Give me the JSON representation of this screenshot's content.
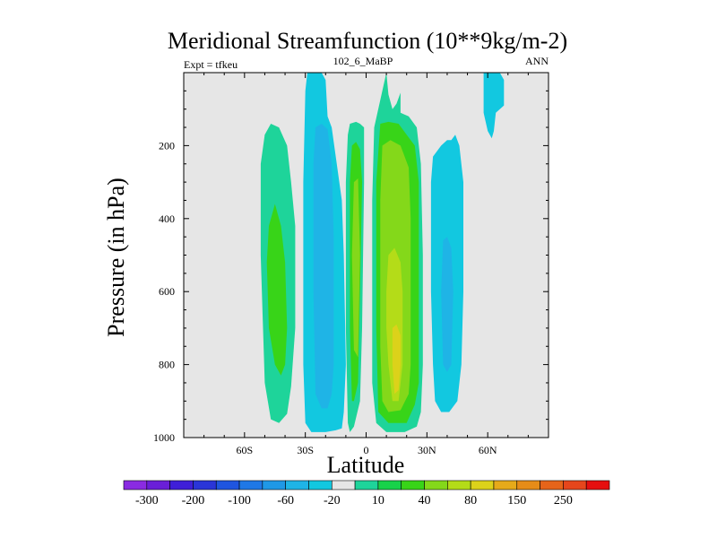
{
  "chart_data": {
    "type": "heatmap",
    "title": "Meridional Streamfunction (10**9kg/m-2)",
    "left_subtitle": "Expt = tfkeu",
    "center_subtitle": "102_6_MaBP",
    "right_subtitle": "ANN",
    "xlabel": "Latitude",
    "ylabel": "Pressure (in hPa)",
    "xlim": [
      -90,
      90
    ],
    "ylim": [
      1000,
      0
    ],
    "x_ticks": [
      {
        "value": -60,
        "label": "60S"
      },
      {
        "value": -30,
        "label": "30S"
      },
      {
        "value": 0,
        "label": "0"
      },
      {
        "value": 30,
        "label": "30N"
      },
      {
        "value": 60,
        "label": "60N"
      }
    ],
    "y_ticks": [
      {
        "value": 200,
        "label": "200"
      },
      {
        "value": 400,
        "label": "400"
      },
      {
        "value": 600,
        "label": "600"
      },
      {
        "value": 800,
        "label": "800"
      },
      {
        "value": 1000,
        "label": "1000"
      }
    ],
    "background_color": "#e6e6e6",
    "colorbar": {
      "colors": [
        "#8a2be2",
        "#6a1fd8",
        "#3f1fd8",
        "#2a35d8",
        "#1f55e0",
        "#1f78e6",
        "#1f98e6",
        "#1fb4e6",
        "#12c8e0",
        "#e6e6e6",
        "#1ed49a",
        "#18d24a",
        "#38d418",
        "#84d81a",
        "#b4dc18",
        "#dcd21a",
        "#e6aa1a",
        "#e68c18",
        "#e6641a",
        "#e6461c",
        "#e60f0f"
      ],
      "labels": [
        {
          "text": "-300",
          "boundary": 1
        },
        {
          "text": "-200",
          "boundary": 3
        },
        {
          "text": "-100",
          "boundary": 5
        },
        {
          "text": "-60",
          "boundary": 7
        },
        {
          "text": "-20",
          "boundary": 9
        },
        {
          "text": "10",
          "boundary": 11
        },
        {
          "text": "40",
          "boundary": 13
        },
        {
          "text": "80",
          "boundary": 15
        },
        {
          "text": "150",
          "boundary": 17
        },
        {
          "text": "250",
          "boundary": 19
        }
      ]
    },
    "contour_bands": [
      {
        "color": "#1ed49a",
        "x": [
          -47,
          -43,
          -39,
          -37,
          -35,
          -35,
          -37,
          -39,
          -43,
          -47,
          -50,
          -52,
          -52,
          -50
        ],
        "y": [
          140,
          150,
          200,
          300,
          420,
          700,
          860,
          935,
          960,
          950,
          850,
          500,
          250,
          170
        ]
      },
      {
        "color": "#38d418",
        "x": [
          -45,
          -42,
          -40,
          -39,
          -40,
          -42,
          -45,
          -48,
          -49,
          -48
        ],
        "y": [
          360,
          420,
          520,
          700,
          800,
          830,
          800,
          700,
          520,
          420
        ]
      },
      {
        "color": "#12c8e0",
        "x": [
          -29,
          -25,
          -22,
          -20,
          -19,
          -17,
          -12,
          -11,
          -10,
          -11,
          -12,
          -15,
          -20,
          -27,
          -30,
          -31,
          -31,
          -30
        ],
        "y": [
          0,
          0,
          0,
          20,
          120,
          150,
          350,
          500,
          800,
          930,
          975,
          980,
          985,
          985,
          960,
          800,
          300,
          50
        ]
      },
      {
        "color": "#1fb4e6",
        "x": [
          -25,
          -22,
          -19,
          -17,
          -16,
          -16,
          -17,
          -19,
          -22,
          -25,
          -26,
          -26
        ],
        "y": [
          150,
          140,
          155,
          250,
          450,
          800,
          880,
          920,
          920,
          880,
          600,
          250
        ]
      },
      {
        "color": "#1ed49a",
        "x": [
          -8,
          -5,
          -3,
          -1,
          -1,
          -2,
          -3,
          -6,
          -8,
          -9,
          -10,
          -10,
          -9
        ],
        "y": [
          140,
          135,
          140,
          150,
          300,
          700,
          900,
          970,
          985,
          960,
          700,
          300,
          170
        ]
      },
      {
        "color": "#38d418",
        "x": [
          -7,
          -5,
          -3,
          -2,
          -3,
          -4,
          -6,
          -7,
          -8,
          -8
        ],
        "y": [
          200,
          190,
          210,
          300,
          600,
          850,
          900,
          900,
          700,
          300
        ]
      },
      {
        "color": "#84d81a",
        "x": [
          -6,
          -4,
          -3,
          -4,
          -6,
          -7
        ],
        "y": [
          300,
          290,
          500,
          780,
          760,
          500
        ]
      },
      {
        "color": "#1ed49a",
        "x": [
          10,
          11,
          13,
          15,
          17,
          17,
          21,
          25,
          27,
          28,
          28,
          27,
          25,
          19,
          10,
          5,
          3,
          3,
          4
        ],
        "y": [
          0,
          60,
          100,
          85,
          55,
          110,
          120,
          150,
          250,
          500,
          800,
          930,
          970,
          985,
          985,
          960,
          850,
          350,
          150
        ]
      },
      {
        "color": "#38d418",
        "x": [
          7,
          11,
          16,
          20,
          24,
          26,
          26,
          24,
          20,
          11,
          6,
          5,
          5
        ],
        "y": [
          140,
          135,
          140,
          170,
          200,
          300,
          850,
          910,
          960,
          960,
          930,
          700,
          300
        ]
      },
      {
        "color": "#84d81a",
        "x": [
          8,
          12,
          17,
          21,
          22,
          22,
          21,
          17,
          11,
          8,
          7,
          7
        ],
        "y": [
          200,
          185,
          200,
          260,
          400,
          800,
          880,
          925,
          930,
          900,
          750,
          350
        ]
      },
      {
        "color": "#b4dc18",
        "x": [
          11,
          14,
          17,
          18,
          18,
          16,
          13,
          11,
          10,
          10
        ],
        "y": [
          500,
          480,
          520,
          600,
          800,
          900,
          900,
          800,
          700,
          600
        ]
      },
      {
        "color": "#dcd21a",
        "x": [
          13,
          15,
          17,
          17,
          16,
          14,
          13
        ],
        "y": [
          700,
          690,
          720,
          800,
          870,
          880,
          800
        ]
      },
      {
        "color": "#12c8e0",
        "x": [
          33,
          37,
          40,
          42,
          44,
          46,
          48,
          48,
          47,
          45,
          41,
          37,
          34,
          33,
          32,
          32
        ],
        "y": [
          230,
          200,
          185,
          185,
          170,
          200,
          300,
          600,
          800,
          900,
          930,
          930,
          900,
          800,
          600,
          300
        ]
      },
      {
        "color": "#1fb4e6",
        "x": [
          38,
          40,
          42,
          43,
          42,
          40,
          38,
          37
        ],
        "y": [
          460,
          450,
          480,
          600,
          800,
          820,
          800,
          600
        ]
      },
      {
        "color": "#12c8e0",
        "x": [
          58,
          62,
          66,
          68,
          68,
          66,
          64,
          63,
          62,
          60,
          58,
          58
        ],
        "y": [
          0,
          0,
          0,
          20,
          90,
          100,
          110,
          160,
          180,
          160,
          110,
          30
        ]
      }
    ]
  }
}
